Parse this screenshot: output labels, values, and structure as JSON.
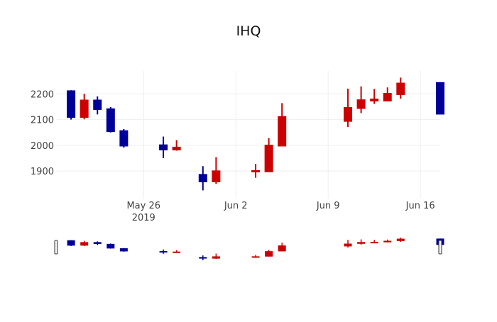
{
  "chart_data": {
    "type": "candlestick",
    "title": "IHQ",
    "xlabel": "",
    "ylabel": "",
    "x_range": [
      "2019-05-19T10:00",
      "2019-06-17T12:00"
    ],
    "ylim": [
      1793,
      2289
    ],
    "yticks": [
      1900,
      2000,
      2100,
      2200
    ],
    "xticks": [
      {
        "date": "2019-05-26",
        "label": "May 26",
        "sublabel": "2019"
      },
      {
        "date": "2019-06-02",
        "label": "Jun 2",
        "sublabel": ""
      },
      {
        "date": "2019-06-09",
        "label": "Jun 9",
        "sublabel": ""
      },
      {
        "date": "2019-06-16",
        "label": "Jun 16",
        "sublabel": ""
      }
    ],
    "grid": true,
    "rangeslider": true,
    "colors": {
      "increasing": "#cc0000",
      "decreasing": "#000099",
      "grid": "#eeeeee"
    },
    "candles": [
      {
        "date": "2019-05-20",
        "open": 2212,
        "high": 2214,
        "low": 2100,
        "close": 2108
      },
      {
        "date": "2019-05-21",
        "open": 2108,
        "high": 2200,
        "low": 2101,
        "close": 2176
      },
      {
        "date": "2019-05-22",
        "open": 2176,
        "high": 2190,
        "low": 2120,
        "close": 2139
      },
      {
        "date": "2019-05-23",
        "open": 2142,
        "high": 2149,
        "low": 2050,
        "close": 2053
      },
      {
        "date": "2019-05-24",
        "open": 2057,
        "high": 2063,
        "low": 1991,
        "close": 1997
      },
      {
        "date": "2019-05-27",
        "open": 2002,
        "high": 2034,
        "low": 1950,
        "close": 1982
      },
      {
        "date": "2019-05-28",
        "open": 1982,
        "high": 2020,
        "low": 1979,
        "close": 1993
      },
      {
        "date": "2019-05-30",
        "open": 1887,
        "high": 1919,
        "low": 1825,
        "close": 1858
      },
      {
        "date": "2019-05-31",
        "open": 1858,
        "high": 1954,
        "low": 1850,
        "close": 1901
      },
      {
        "date": "2019-06-03",
        "open": 1898,
        "high": 1928,
        "low": 1874,
        "close": 1902
      },
      {
        "date": "2019-06-04",
        "open": 1897,
        "high": 2028,
        "low": 1897,
        "close": 2001
      },
      {
        "date": "2019-06-05",
        "open": 1997,
        "high": 2164,
        "low": 1997,
        "close": 2112
      },
      {
        "date": "2019-06-10",
        "open": 2093,
        "high": 2220,
        "low": 2071,
        "close": 2147
      },
      {
        "date": "2019-06-11",
        "open": 2143,
        "high": 2229,
        "low": 2125,
        "close": 2177
      },
      {
        "date": "2019-06-12",
        "open": 2172,
        "high": 2219,
        "low": 2161,
        "close": 2180
      },
      {
        "date": "2019-06-13",
        "open": 2172,
        "high": 2225,
        "low": 2172,
        "close": 2202
      },
      {
        "date": "2019-06-14",
        "open": 2197,
        "high": 2263,
        "low": 2181,
        "close": 2242
      },
      {
        "date": "2019-06-17",
        "open": 2244,
        "high": 2245,
        "low": 2121,
        "close": 2121
      }
    ]
  }
}
